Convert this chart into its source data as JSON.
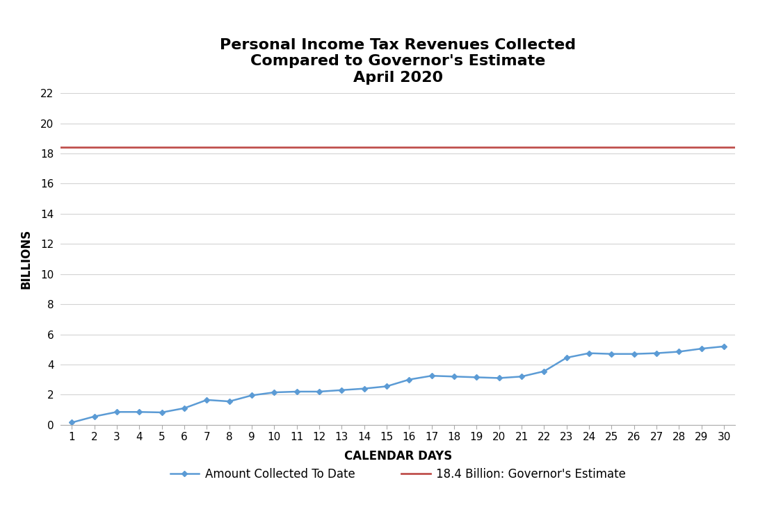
{
  "title": "Personal Income Tax Revenues Collected\nCompared to Governor's Estimate\nApril 2020",
  "xlabel": "CALENDAR DAYS",
  "ylabel": "BILLIONS",
  "governor_estimate": 18.4,
  "governor_label": "18.4 Billion: Governor's Estimate",
  "collected_label": "Amount Collected To Date",
  "days": [
    1,
    2,
    3,
    4,
    5,
    6,
    7,
    8,
    9,
    10,
    11,
    12,
    13,
    14,
    15,
    16,
    17,
    18,
    19,
    20,
    21,
    22,
    23,
    24,
    25,
    26,
    27,
    28,
    29,
    30
  ],
  "collected": [
    0.15,
    0.55,
    0.85,
    0.85,
    0.82,
    1.1,
    1.65,
    1.55,
    1.95,
    2.15,
    2.2,
    2.2,
    2.3,
    2.4,
    2.55,
    3.0,
    3.25,
    3.2,
    3.15,
    3.1,
    3.2,
    3.55,
    4.45,
    4.75,
    4.7,
    4.7,
    4.75,
    4.85,
    5.05,
    5.2
  ],
  "line_color": "#5B9BD5",
  "gov_line_color": "#C0504D",
  "ylim": [
    0,
    22
  ],
  "yticks": [
    0,
    2,
    4,
    6,
    8,
    10,
    12,
    14,
    16,
    18,
    20,
    22
  ],
  "background_color": "#FFFFFF",
  "grid_color": "#D3D3D3",
  "title_fontsize": 16,
  "axis_label_fontsize": 12,
  "tick_fontsize": 11,
  "legend_fontsize": 12
}
